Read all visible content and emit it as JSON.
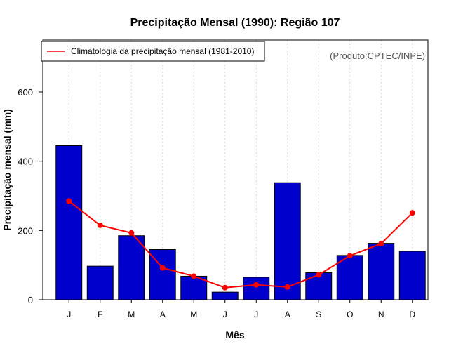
{
  "chart_data": {
    "type": "bar",
    "title": "Precipitação Mensal (1990): Região 107",
    "xlabel": "Mês",
    "ylabel": "Precipitação mensal (mm)",
    "credit": "(Produto:CPTEC/INPE)",
    "categories": [
      "J",
      "F",
      "M",
      "A",
      "M",
      "J",
      "J",
      "A",
      "S",
      "O",
      "N",
      "D"
    ],
    "ylim": [
      0,
      750
    ],
    "yticks": [
      0,
      200,
      400,
      600
    ],
    "grid": "vertical dotted",
    "series": [
      {
        "name": "Precipitação mensal (1990)",
        "type": "bar",
        "color": "#0000cd",
        "values": [
          445,
          97,
          185,
          145,
          68,
          22,
          65,
          338,
          78,
          128,
          163,
          140
        ]
      },
      {
        "name": "Climatologia da precipitação mensal (1981-2010)",
        "type": "line",
        "color": "#ff0000",
        "values": [
          285,
          215,
          193,
          92,
          68,
          35,
          43,
          37,
          72,
          127,
          162,
          251
        ]
      }
    ],
    "legend": {
      "position": "top-left",
      "entries": [
        "Climatologia da precipitação mensal (1981-2010)"
      ]
    }
  }
}
